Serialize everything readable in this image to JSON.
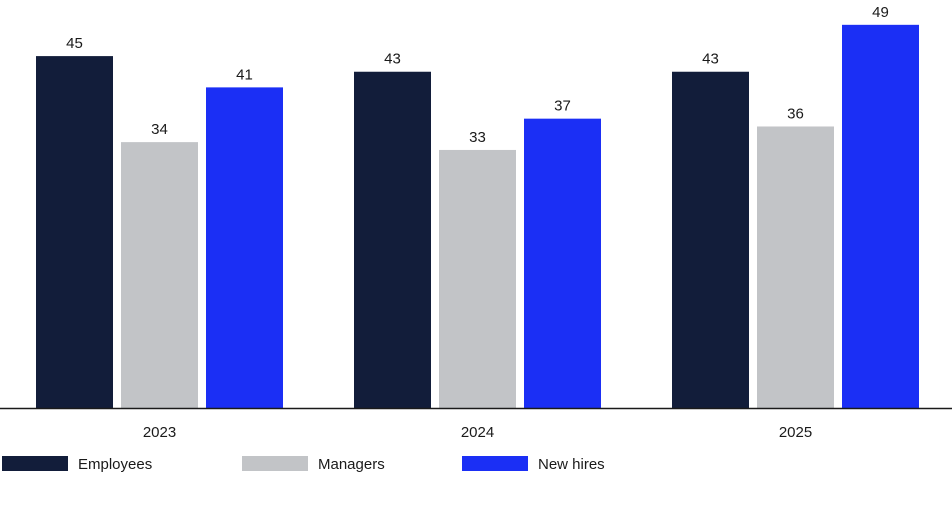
{
  "chart_data": {
    "type": "bar",
    "categories": [
      "2023",
      "2024",
      "2025"
    ],
    "series": [
      {
        "name": "Employees",
        "values": [
          45,
          43,
          43
        ],
        "color": "#121d3a"
      },
      {
        "name": "Managers",
        "values": [
          34,
          33,
          36
        ],
        "color": "#c2c4c7"
      },
      {
        "name": "New hires",
        "values": [
          41,
          37,
          49
        ],
        "color": "#1b2ff5"
      }
    ],
    "ylim": [
      0,
      50
    ],
    "grid": false,
    "legend": "bottom-left"
  }
}
